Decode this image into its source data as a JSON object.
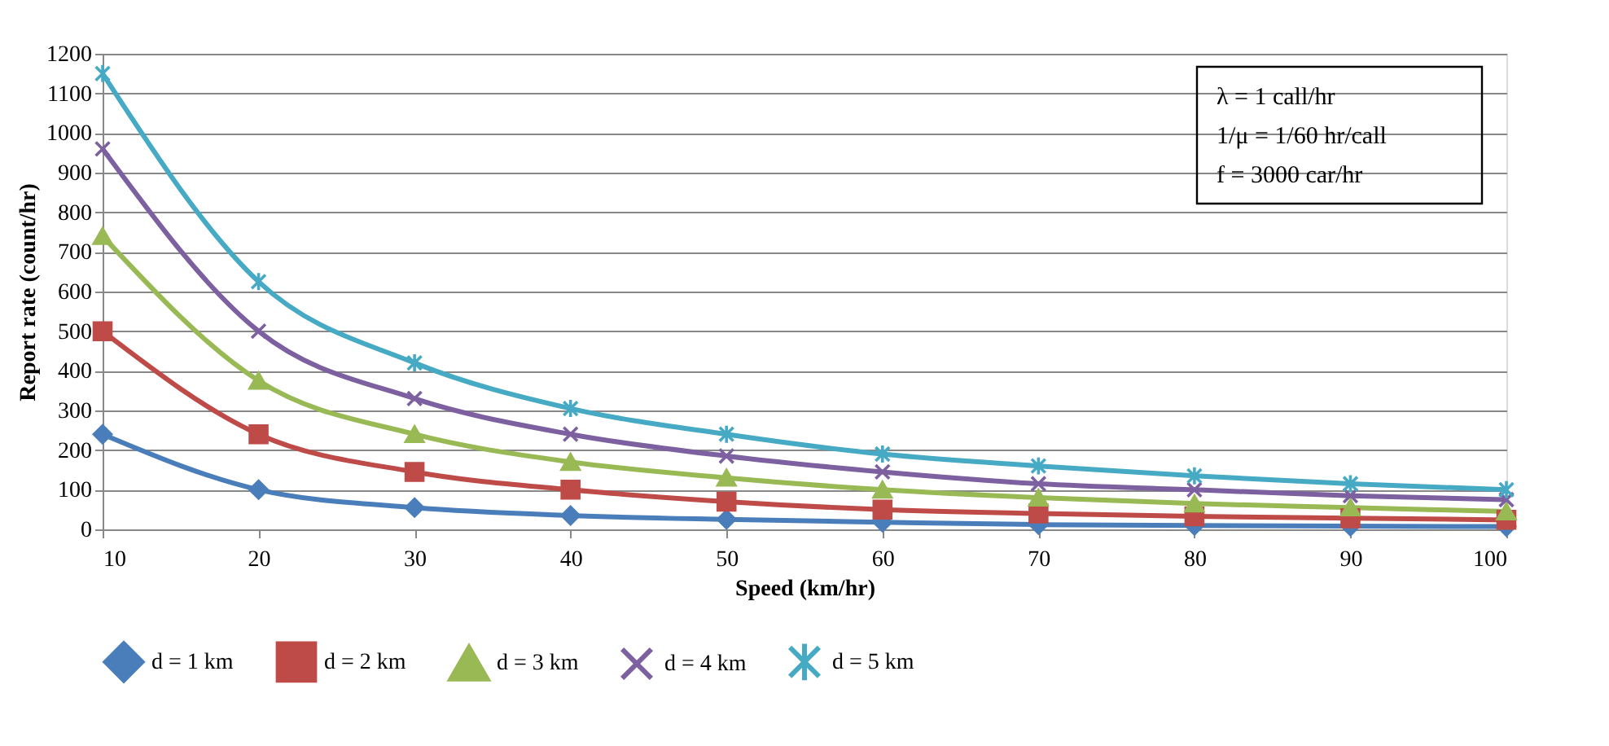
{
  "chart_data": {
    "type": "line",
    "xlabel": "Speed (km/hr)",
    "ylabel": "Report rate (count/hr)",
    "x": [
      10,
      20,
      30,
      40,
      50,
      60,
      70,
      80,
      90,
      100
    ],
    "xlim": [
      10,
      100
    ],
    "xticks": [
      10,
      20,
      30,
      40,
      50,
      60,
      70,
      80,
      90,
      100
    ],
    "ylim": [
      0,
      1200
    ],
    "yticks": [
      0,
      100,
      200,
      300,
      400,
      500,
      600,
      700,
      800,
      900,
      {
        "value": 1000,
        "label": "1000"
      },
      {
        "value": 1100,
        "label": "1100"
      },
      {
        "value": 1200,
        "label": "1200"
      }
    ],
    "grid": "y",
    "legend": "bottom",
    "annotations": [
      "λ = 1 call/hr",
      "1/μ = 1/60 hr/call",
      "f = 3000 car/hr"
    ],
    "series": [
      {
        "name": "d = 1 km",
        "color": "#4a7ebb",
        "marker": "diamond",
        "values": [
          240,
          100,
          55,
          35,
          25,
          18,
          12,
          10,
          8,
          7
        ]
      },
      {
        "name": "d = 2 km",
        "color": "#be4b48",
        "marker": "square",
        "values": [
          500,
          240,
          145,
          100,
          70,
          50,
          40,
          33,
          28,
          24
        ]
      },
      {
        "name": "d = 3 km",
        "color": "#98b954",
        "marker": "triangle",
        "values": [
          740,
          375,
          240,
          170,
          130,
          100,
          80,
          65,
          55,
          45
        ]
      },
      {
        "name": "d = 4 km",
        "color": "#7d60a0",
        "marker": "cross",
        "values": [
          960,
          500,
          330,
          240,
          185,
          145,
          115,
          100,
          85,
          75
        ]
      },
      {
        "name": "d = 5 km",
        "color": "#46aac5",
        "marker": "cross",
        "values": [
          1150,
          625,
          420,
          305,
          240,
          190,
          160,
          135,
          115,
          100
        ]
      }
    ]
  }
}
